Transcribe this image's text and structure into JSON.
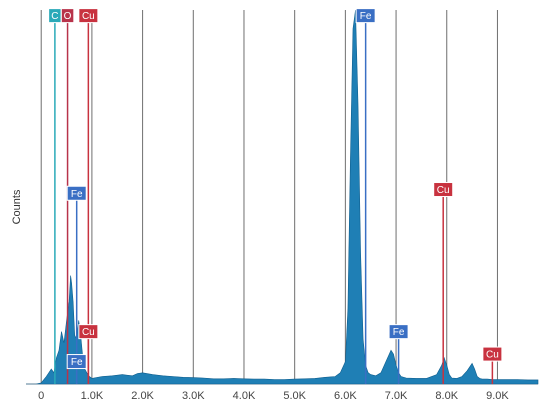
{
  "chart_data": {
    "type": "area",
    "title": "",
    "xlabel": "",
    "ylabel": "Counts",
    "xlim": [
      -0.3,
      9.8
    ],
    "ylim": [
      0,
      1
    ],
    "grid": "vertical",
    "x_ticks": [
      0,
      1,
      2,
      3,
      4,
      5,
      6,
      7,
      8,
      9
    ],
    "x_tick_labels": [
      "0",
      "1.0K",
      "2.0K",
      "3.0K",
      "4.0K",
      "5.0K",
      "6.0K",
      "7.0K",
      "8.0K",
      "9.0K"
    ],
    "series": [
      {
        "color": "#1f7fb5",
        "x": [
          -0.3,
          -0.2,
          -0.1,
          0.0,
          0.1,
          0.2,
          0.25,
          0.3,
          0.35,
          0.4,
          0.45,
          0.5,
          0.55,
          0.58,
          0.6,
          0.63,
          0.66,
          0.7,
          0.74,
          0.78,
          0.82,
          0.86,
          0.9,
          0.95,
          1.0,
          1.2,
          1.4,
          1.6,
          1.8,
          1.9,
          2.0,
          2.2,
          2.4,
          2.6,
          2.8,
          3.0,
          3.2,
          3.4,
          3.6,
          3.8,
          4.0,
          4.2,
          4.4,
          4.6,
          4.8,
          5.0,
          5.2,
          5.4,
          5.6,
          5.8,
          5.9,
          6.0,
          6.05,
          6.1,
          6.15,
          6.2,
          6.25,
          6.3,
          6.35,
          6.4,
          6.45,
          6.5,
          6.6,
          6.7,
          6.8,
          6.9,
          6.95,
          7.0,
          7.05,
          7.1,
          7.2,
          7.4,
          7.6,
          7.8,
          7.9,
          7.95,
          8.0,
          8.05,
          8.1,
          8.2,
          8.3,
          8.4,
          8.5,
          8.55,
          8.6,
          8.65,
          8.7,
          8.8,
          8.9,
          9.0,
          9.2,
          9.4,
          9.6,
          9.8
        ],
        "values": [
          0,
          0,
          0,
          0.003,
          0.02,
          0.04,
          0.03,
          0.07,
          0.09,
          0.14,
          0.11,
          0.17,
          0.22,
          0.29,
          0.27,
          0.22,
          0.13,
          0.12,
          0.17,
          0.13,
          0.07,
          0.04,
          0.03,
          0.02,
          0.015,
          0.02,
          0.022,
          0.025,
          0.022,
          0.028,
          0.03,
          0.025,
          0.022,
          0.02,
          0.018,
          0.017,
          0.016,
          0.014,
          0.014,
          0.015,
          0.014,
          0.013,
          0.013,
          0.012,
          0.012,
          0.013,
          0.014,
          0.015,
          0.018,
          0.02,
          0.03,
          0.06,
          0.2,
          0.6,
          0.95,
          1.0,
          0.75,
          0.35,
          0.12,
          0.05,
          0.03,
          0.025,
          0.022,
          0.03,
          0.06,
          0.09,
          0.08,
          0.05,
          0.03,
          0.02,
          0.016,
          0.015,
          0.015,
          0.025,
          0.05,
          0.07,
          0.05,
          0.025,
          0.016,
          0.015,
          0.02,
          0.035,
          0.055,
          0.04,
          0.02,
          0.015,
          0.013,
          0.013,
          0.012,
          0.012,
          0.012,
          0.012,
          0.011,
          0.011
        ]
      }
    ],
    "element_markers": [
      {
        "label": "C",
        "x": 0.27,
        "y": 0.985,
        "color": "#2aa9b8"
      },
      {
        "label": "O",
        "x": 0.52,
        "y": 0.985,
        "color": "#b8334a"
      },
      {
        "label": "Cu",
        "x": 0.93,
        "y": 0.985,
        "color": "#c8323f"
      },
      {
        "label": "Fe",
        "x": 6.4,
        "y": 0.985,
        "color": "#3a6fc4"
      },
      {
        "label": "Fe",
        "x": 0.7,
        "y": 0.51,
        "color": "#3a6fc4"
      },
      {
        "label": "Cu",
        "x": 7.93,
        "y": 0.52,
        "color": "#c8323f"
      },
      {
        "label": "Cu",
        "x": 0.93,
        "y": 0.14,
        "color": "#c8323f"
      },
      {
        "label": "Fe",
        "x": 7.05,
        "y": 0.14,
        "color": "#3a6fc4"
      },
      {
        "label": "Fe",
        "x": 0.7,
        "y": 0.06,
        "color": "#3a6fc4"
      },
      {
        "label": "Cu",
        "x": 8.9,
        "y": 0.08,
        "color": "#c8323f"
      }
    ]
  }
}
